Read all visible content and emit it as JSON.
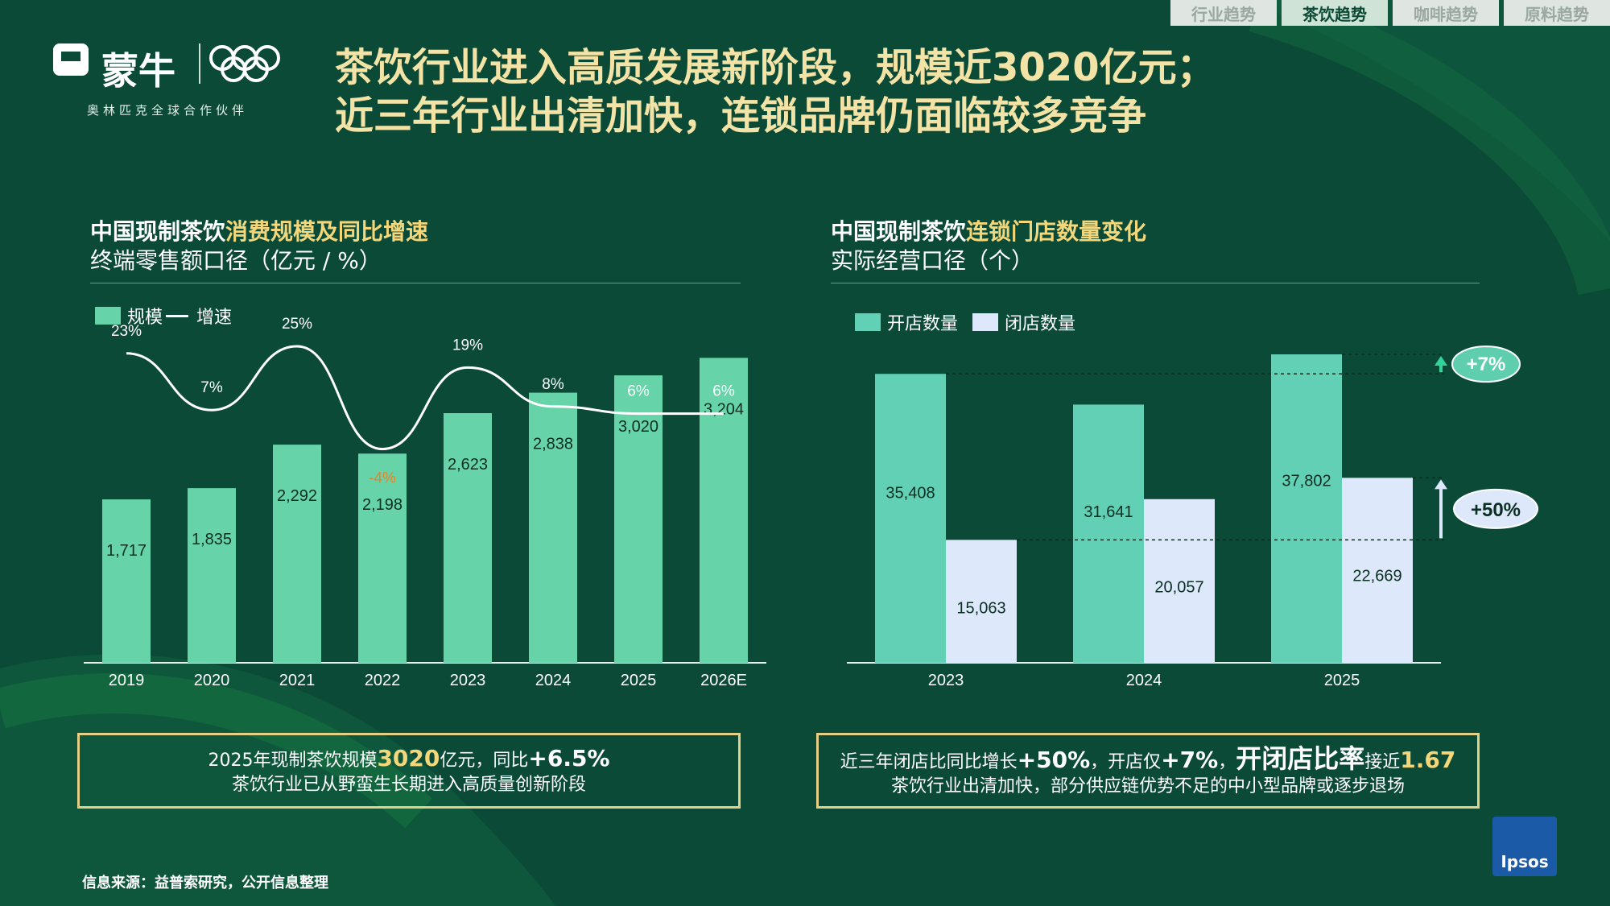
{
  "tabs": [
    "行业趋势",
    "茶饮趋势",
    "咖啡趋势",
    "原料趋势"
  ],
  "brand": {
    "name": "蒙牛",
    "partner": "奥林匹克全球合作伙伴"
  },
  "title": {
    "line1": "茶饮行业进入高质发展新阶段，规模近3020亿元；",
    "line2": "近三年行业出清加快，连锁品牌仍面临较多竞争"
  },
  "left": {
    "title_a": "中国现制茶饮",
    "title_b": "消费规模及同比增速",
    "subtitle": "终端零售额口径（亿元 / %）",
    "legend_bar": "规模",
    "legend_line": "增速",
    "note": {
      "p1": "2025年现制茶饮规模",
      "v1": "3020",
      "p2": "亿元，同比",
      "v2": "+6.5%",
      "line2": "茶饮行业已从野蛮生长期进入高质量创新阶段"
    }
  },
  "right": {
    "title_a": "中国现制茶饮",
    "title_b": "连锁门店数量变化",
    "subtitle": "实际经营口径（个）",
    "legend_open": "开店数量",
    "legend_close": "闭店数量",
    "badge_open": "+7%",
    "badge_close": "+50%",
    "note": {
      "p1": "近三年闭店比同比增长",
      "v1": "+50%",
      "p2": "，开店仅",
      "v2": "+7%",
      "p3": "，",
      "v3": "开闭店比率",
      "p4": "接近",
      "v4": "1.67",
      "line2": "茶饮行业出清加快，部分供应链优势不足的中小型品牌或逐步退场"
    }
  },
  "source": "信息来源：益普索研究，公开信息整理",
  "ipsos_label": "Ipsos",
  "colors": {
    "bg": "#0b4a36",
    "bar": "#66d4a8",
    "bar_open": "#62d0b4",
    "bar_close": "#dde9fb",
    "gold": "#f3d77a",
    "neg": "#e8822a"
  },
  "chart_data": [
    {
      "type": "bar",
      "categories": [
        "2019",
        "2020",
        "2021",
        "2022",
        "2023",
        "2024",
        "2025",
        "2026E"
      ],
      "series": [
        {
          "name": "规模",
          "values": [
            1717,
            1835,
            2292,
            2198,
            2623,
            2838,
            3020,
            3204
          ],
          "labels": [
            "1,717",
            "1,835",
            "2,292",
            "2,198",
            "2,623",
            "2,838",
            "3,020",
            "3,204"
          ]
        },
        {
          "name": "增速",
          "type": "line",
          "values": [
            23,
            7,
            25,
            -4,
            19,
            8,
            6,
            6
          ],
          "labels": [
            "23%",
            "7%",
            "25%",
            "-4%",
            "19%",
            "8%",
            "6%",
            "6%"
          ]
        }
      ],
      "title": "中国现制茶饮消费规模及同比增速",
      "ylabel": "终端零售额口径（亿元 / %）"
    },
    {
      "type": "bar",
      "categories": [
        "2023",
        "2024",
        "2025"
      ],
      "series": [
        {
          "name": "开店数量",
          "values": [
            35408,
            31641,
            37802
          ],
          "labels": [
            "35,408",
            "31,641",
            "37,802"
          ]
        },
        {
          "name": "闭店数量",
          "values": [
            15063,
            20057,
            22669
          ],
          "labels": [
            "15,063",
            "20,057",
            "22,669"
          ]
        }
      ],
      "title": "中国现制茶饮连锁门店数量变化",
      "ylabel": "实际经营口径（个）"
    }
  ]
}
